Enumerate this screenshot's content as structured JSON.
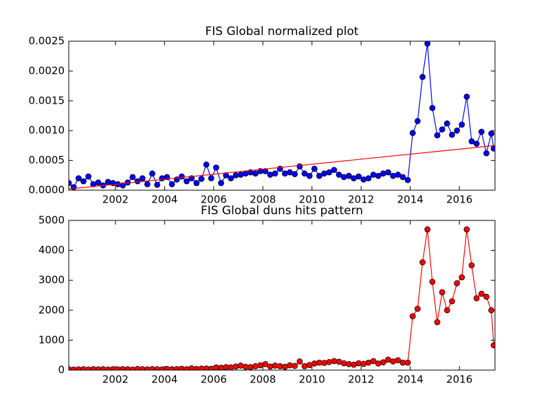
{
  "chart_data": [
    {
      "type": "line",
      "title": "FIS Global normalized plot",
      "x": [
        2000.1,
        2000.3,
        2000.5,
        2000.7,
        2000.9,
        2001.1,
        2001.3,
        2001.5,
        2001.7,
        2001.9,
        2002.1,
        2002.3,
        2002.5,
        2002.7,
        2002.9,
        2003.1,
        2003.3,
        2003.5,
        2003.7,
        2003.9,
        2004.1,
        2004.3,
        2004.5,
        2004.7,
        2004.9,
        2005.1,
        2005.3,
        2005.5,
        2005.7,
        2005.9,
        2006.1,
        2006.3,
        2006.5,
        2006.7,
        2006.9,
        2007.1,
        2007.3,
        2007.5,
        2007.7,
        2007.9,
        2008.1,
        2008.3,
        2008.5,
        2008.7,
        2008.9,
        2009.1,
        2009.3,
        2009.5,
        2009.7,
        2009.9,
        2010.1,
        2010.3,
        2010.5,
        2010.7,
        2010.9,
        2011.1,
        2011.3,
        2011.5,
        2011.7,
        2011.9,
        2012.1,
        2012.3,
        2012.5,
        2012.7,
        2012.9,
        2013.1,
        2013.3,
        2013.5,
        2013.7,
        2013.9,
        2014.1,
        2014.3,
        2014.5,
        2014.7,
        2014.9,
        2015.1,
        2015.3,
        2015.5,
        2015.7,
        2015.9,
        2016.1,
        2016.3,
        2016.5,
        2016.7,
        2016.9,
        2017.1,
        2017.3,
        2017.4
      ],
      "series": [
        {
          "color": "#0000ff",
          "marker": true,
          "values": [
            0.00012,
            5e-05,
            0.0002,
            0.00015,
            0.00023,
            0.0001,
            0.00013,
            8e-05,
            0.00014,
            0.00012,
            0.0001,
            8e-05,
            0.00013,
            0.00022,
            0.00015,
            0.0002,
            0.0001,
            0.00028,
            9e-05,
            0.0002,
            0.00022,
            0.0001,
            0.00018,
            0.00023,
            0.00015,
            0.0002,
            0.00012,
            0.00019,
            0.00043,
            0.0002,
            0.00038,
            0.00012,
            0.00025,
            0.0002,
            0.00025,
            0.00026,
            0.00028,
            0.0003,
            0.00028,
            0.00032,
            0.00032,
            0.00026,
            0.00028,
            0.00036,
            0.00028,
            0.0003,
            0.00027,
            0.0004,
            0.00028,
            0.00024,
            0.00036,
            0.00024,
            0.00028,
            0.0003,
            0.00034,
            0.00026,
            0.00022,
            0.00024,
            0.0002,
            0.00023,
            0.00018,
            0.0002,
            0.00026,
            0.00024,
            0.00028,
            0.0003,
            0.00024,
            0.00026,
            0.00022,
            0.00017,
            0.00096,
            0.00116,
            0.0019,
            0.00246,
            0.00138,
            0.00092,
            0.00102,
            0.00112,
            0.00093,
            0.001,
            0.0011,
            0.00157,
            0.00082,
            0.00078,
            0.00098,
            0.00062,
            0.00095,
            0.0007
          ]
        },
        {
          "color": "#ff0000",
          "marker": false,
          "x": [
            2000.1,
            2017.45
          ],
          "values": [
            2e-05,
            0.00075
          ]
        }
      ],
      "xlim": [
        2000.1,
        2017.45
      ],
      "xticks": [
        2002,
        2004,
        2006,
        2008,
        2010,
        2012,
        2014,
        2016
      ],
      "ylim": [
        0,
        0.0025
      ],
      "yticks": [
        {
          "value": 0,
          "label": "0.0000"
        },
        {
          "value": 0.0005,
          "label": "0.0005"
        },
        {
          "value": 0.001,
          "label": "0.0010"
        },
        {
          "value": 0.0015,
          "label": "0.0015"
        },
        {
          "value": 0.002,
          "label": "0.0020"
        },
        {
          "value": 0.0025,
          "label": "0.0025"
        }
      ]
    },
    {
      "type": "line",
      "title": "FIS Global duns hits pattern",
      "x": [
        2000.1,
        2000.3,
        2000.5,
        2000.7,
        2000.9,
        2001.1,
        2001.3,
        2001.5,
        2001.7,
        2001.9,
        2002.1,
        2002.3,
        2002.5,
        2002.7,
        2002.9,
        2003.1,
        2003.3,
        2003.5,
        2003.7,
        2003.9,
        2004.1,
        2004.3,
        2004.5,
        2004.7,
        2004.9,
        2005.1,
        2005.3,
        2005.5,
        2005.7,
        2005.9,
        2006.1,
        2006.3,
        2006.5,
        2006.7,
        2006.9,
        2007.1,
        2007.3,
        2007.5,
        2007.7,
        2007.9,
        2008.1,
        2008.3,
        2008.5,
        2008.7,
        2008.9,
        2009.1,
        2009.3,
        2009.5,
        2009.7,
        2009.9,
        2010.1,
        2010.3,
        2010.5,
        2010.7,
        2010.9,
        2011.1,
        2011.3,
        2011.5,
        2011.7,
        2011.9,
        2012.1,
        2012.3,
        2012.5,
        2012.7,
        2012.9,
        2013.1,
        2013.3,
        2013.5,
        2013.7,
        2013.9,
        2014.1,
        2014.3,
        2014.5,
        2014.7,
        2014.9,
        2015.1,
        2015.3,
        2015.5,
        2015.7,
        2015.9,
        2016.1,
        2016.3,
        2016.5,
        2016.7,
        2016.9,
        2017.1,
        2017.3,
        2017.4
      ],
      "series": [
        {
          "color": "#ff0000",
          "marker": true,
          "values": [
            30,
            20,
            25,
            30,
            20,
            35,
            25,
            30,
            20,
            30,
            25,
            35,
            30,
            20,
            40,
            30,
            25,
            35,
            30,
            25,
            40,
            30,
            35,
            45,
            30,
            60,
            40,
            50,
            55,
            45,
            90,
            80,
            100,
            90,
            120,
            150,
            110,
            100,
            130,
            160,
            200,
            120,
            150,
            130,
            110,
            160,
            140,
            290,
            130,
            170,
            220,
            250,
            240,
            270,
            300,
            280,
            230,
            200,
            180,
            230,
            210,
            250,
            300,
            220,
            260,
            350,
            290,
            330,
            250,
            250,
            1800,
            2050,
            3600,
            4700,
            2950,
            1600,
            2600,
            2000,
            2300,
            2900,
            3100,
            4700,
            3500,
            2400,
            2550,
            2450,
            2000,
            830
          ]
        }
      ],
      "xlim": [
        2000.1,
        2017.45
      ],
      "xticks": [
        2002,
        2004,
        2006,
        2008,
        2010,
        2012,
        2014,
        2016
      ],
      "ylim": [
        0,
        5000
      ],
      "yticks": [
        0,
        1000,
        2000,
        3000,
        4000,
        5000
      ]
    }
  ]
}
